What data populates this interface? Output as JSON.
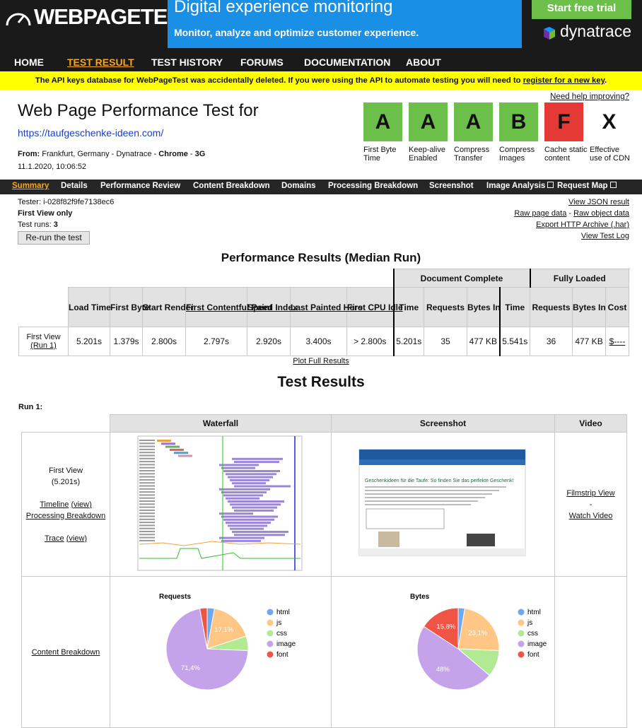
{
  "header": {
    "logo": "WEBPAGETEST",
    "ad_title": "Digital experience monitoring",
    "ad_text": "Monitor, analyze and optimize customer experience.",
    "trial_button": "Start free trial",
    "sponsor": "dynatrace"
  },
  "nav": [
    "HOME",
    "TEST RESULT",
    "TEST HISTORY",
    "FORUMS",
    "DOCUMENTATION",
    "ABOUT"
  ],
  "notice": {
    "text": "The API keys database for WebPageTest was accidentally deleted. If you were using the API to automate testing you will need to",
    "link": "register for a new key",
    "end": "."
  },
  "help_link": "Need help improving?",
  "title": "Web Page Performance Test for",
  "url": "https://taufgeschenke-ideen.com/",
  "from": {
    "label": "From:",
    "location": "Frankfurt, Germany - Dynatrace -",
    "browser": "Chrome",
    "separator": "-",
    "connection": "3G"
  },
  "date": "11.1.2020, 10:06:52",
  "grades": [
    {
      "grade": "A",
      "label": "First Byte Time",
      "color": "#6cc04a"
    },
    {
      "grade": "A",
      "label": "Keep-alive Enabled",
      "color": "#6cc04a"
    },
    {
      "grade": "A",
      "label": "Compress Transfer",
      "color": "#6cc04a"
    },
    {
      "grade": "B",
      "label": "Compress Images",
      "color": "#6cc04a"
    },
    {
      "grade": "F",
      "label": "Cache static content",
      "color": "#e53935"
    },
    {
      "grade": "X",
      "label": "Effective use of CDN"
    }
  ],
  "tabs": [
    "Summary",
    "Details",
    "Performance Review",
    "Content Breakdown",
    "Domains",
    "Processing Breakdown",
    "Screenshot",
    "Image Analysis",
    "Request Map"
  ],
  "test_info": {
    "tester": "Tester: i-028f82f9fe7138ec6",
    "view": "First View only",
    "runs_label": "Test runs:",
    "runs": "3",
    "rerun": "Re-run the test"
  },
  "links": {
    "json": "View JSON result",
    "raw_page": "Raw page data",
    "separator": "-",
    "raw_object": "Raw object data",
    "har": "Export HTTP Archive (.har)",
    "log": "View Test Log"
  },
  "results": {
    "title": "Performance Results (Median Run)",
    "groups": [
      "Document Complete",
      "Fully Loaded"
    ],
    "columns": [
      "Load Time",
      "First Byte",
      "Start Render",
      "First Contentful Paint",
      "Speed Index",
      "Last Painted Hero",
      "First CPU Idle",
      "Time",
      "Requests",
      "Bytes In",
      "Time",
      "Requests",
      "Bytes In",
      "Cost"
    ],
    "row_label": "First View",
    "run_link": "(Run 1)",
    "row": [
      "5.201s",
      "1.379s",
      "2.800s",
      "2.797s",
      "2.920s",
      "3.400s",
      "> 2.800s",
      "5.201s",
      "35",
      "477 KB",
      "5.541s",
      "36",
      "477 KB",
      "$----"
    ],
    "plot_link": "Plot Full Results"
  },
  "test_results": {
    "title": "Test Results",
    "run": "Run 1:",
    "headers": [
      "Waterfall",
      "Screenshot",
      "Video"
    ],
    "first_view": "First View",
    "load_time": "(5.201s)",
    "timeline": "Timeline",
    "timeline_view": "(view)",
    "processing": "Processing Breakdown",
    "trace": "Trace",
    "trace_view": "(view)",
    "filmstrip": "Filmstrip View",
    "separator": "-",
    "video": "Watch Video",
    "screenshot_heading": "Geschenkideen für die Taufe: So finden Sie das perfekte Geschenk!",
    "content_breakdown": "Content Breakdown",
    "charts": [
      {
        "type": "pie",
        "title": "Requests",
        "categories": [
          "html",
          "js",
          "css",
          "image",
          "font"
        ],
        "colors": [
          "#6fa8f0",
          "#ffc685",
          "#b2ea94",
          "#c5a3ea",
          "#f05444"
        ],
        "values": [
          2.9,
          17.1,
          5.7,
          71.4,
          2.9
        ],
        "value_labels": [
          null,
          "17,1%",
          null,
          "71,4%",
          null
        ]
      },
      {
        "type": "pie",
        "title": "Bytes",
        "categories": [
          "html",
          "js",
          "css",
          "image",
          "font"
        ],
        "colors": [
          "#6fa8f0",
          "#ffc685",
          "#b2ea94",
          "#c5a3ea",
          "#f05444"
        ],
        "values": [
          2.6,
          23.1,
          10.5,
          48,
          15.8
        ],
        "value_labels": [
          null,
          "23,1%",
          null,
          "48%",
          "15,8%"
        ]
      }
    ]
  }
}
